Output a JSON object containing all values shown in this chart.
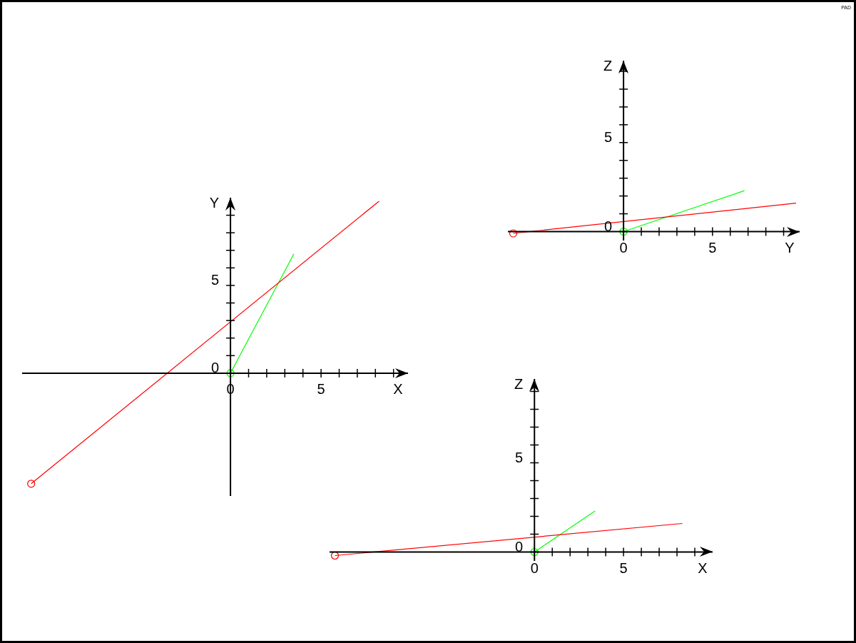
{
  "chart_data": [
    {
      "type": "line",
      "xlabel": "X",
      "ylabel": "Y",
      "marker": "circle",
      "annotations": [
        "PAD"
      ],
      "xlim": [
        -11.5,
        9.8
      ],
      "ylim": [
        -7,
        10
      ],
      "xticks": [
        {
          "value": 0,
          "label": "0"
        },
        {
          "value": 1,
          "label": null
        },
        {
          "value": 2,
          "label": null
        },
        {
          "value": 3,
          "label": null
        },
        {
          "value": 4,
          "label": null
        },
        {
          "value": 5,
          "label": "5"
        },
        {
          "value": 6,
          "label": null
        },
        {
          "value": 7,
          "label": null
        },
        {
          "value": 8,
          "label": null
        },
        {
          "value": 9,
          "label": null
        }
      ],
      "yticks": [
        {
          "value": 0,
          "label": "0"
        },
        {
          "value": 1,
          "label": null
        },
        {
          "value": 2,
          "label": null
        },
        {
          "value": 3,
          "label": null
        },
        {
          "value": 4,
          "label": null
        },
        {
          "value": 5,
          "label": "5"
        },
        {
          "value": 6,
          "label": null
        },
        {
          "value": 7,
          "label": null
        },
        {
          "value": 8,
          "label": null
        },
        {
          "value": 9,
          "label": null
        }
      ],
      "series": [
        {
          "color": "#ff0000",
          "x": [
            -11,
            8.2
          ],
          "values": [
            -6.3,
            9.8
          ]
        },
        {
          "color": "#00ff00",
          "x": [
            0,
            3.5
          ],
          "values": [
            0,
            6.8
          ]
        }
      ]
    },
    {
      "type": "line",
      "xlabel": "Y",
      "ylabel": "Z",
      "marker": "circle",
      "xlim": [
        -6.5,
        9.9
      ],
      "ylim": [
        -0.5,
        9.6
      ],
      "xticks": [
        {
          "value": 0,
          "label": "0"
        },
        {
          "value": 1,
          "label": null
        },
        {
          "value": 2,
          "label": null
        },
        {
          "value": 3,
          "label": null
        },
        {
          "value": 4,
          "label": null
        },
        {
          "value": 5,
          "label": "5"
        },
        {
          "value": 6,
          "label": null
        },
        {
          "value": 7,
          "label": null
        },
        {
          "value": 8,
          "label": null
        },
        {
          "value": 9,
          "label": null
        }
      ],
      "yticks": [
        {
          "value": 0,
          "label": "0"
        },
        {
          "value": 1,
          "label": null
        },
        {
          "value": 2,
          "label": null
        },
        {
          "value": 3,
          "label": null
        },
        {
          "value": 4,
          "label": null
        },
        {
          "value": 5,
          "label": "5"
        },
        {
          "value": 6,
          "label": null
        },
        {
          "value": 7,
          "label": null
        },
        {
          "value": 8,
          "label": null
        },
        {
          "value": 9,
          "label": null
        }
      ],
      "series": [
        {
          "color": "#ff0000",
          "x": [
            -6.2,
            9.7
          ],
          "values": [
            -0.1,
            1.6
          ]
        },
        {
          "color": "#00ff00",
          "x": [
            0,
            6.8
          ],
          "values": [
            0,
            2.3
          ]
        }
      ]
    },
    {
      "type": "line",
      "xlabel": "X",
      "ylabel": "Z",
      "marker": "circle",
      "xlim": [
        -11.5,
        10
      ],
      "ylim": [
        -0.5,
        9.7
      ],
      "xticks": [
        {
          "value": 0,
          "label": "0"
        },
        {
          "value": 1,
          "label": null
        },
        {
          "value": 2,
          "label": null
        },
        {
          "value": 3,
          "label": null
        },
        {
          "value": 4,
          "label": null
        },
        {
          "value": 5,
          "label": "5"
        },
        {
          "value": 6,
          "label": null
        },
        {
          "value": 7,
          "label": null
        },
        {
          "value": 8,
          "label": null
        },
        {
          "value": 9,
          "label": null
        }
      ],
      "yticks": [
        {
          "value": 0,
          "label": "0"
        },
        {
          "value": 1,
          "label": null
        },
        {
          "value": 2,
          "label": null
        },
        {
          "value": 3,
          "label": null
        },
        {
          "value": 4,
          "label": null
        },
        {
          "value": 5,
          "label": "5"
        },
        {
          "value": 6,
          "label": null
        },
        {
          "value": 7,
          "label": null
        },
        {
          "value": 8,
          "label": null
        },
        {
          "value": 9,
          "label": null
        }
      ],
      "series": [
        {
          "color": "#ff0000",
          "x": [
            -11.2,
            8.3
          ],
          "values": [
            -0.2,
            1.6
          ]
        },
        {
          "color": "#00ff00",
          "x": [
            0,
            3.4
          ],
          "values": [
            0,
            2.3
          ]
        }
      ]
    }
  ]
}
